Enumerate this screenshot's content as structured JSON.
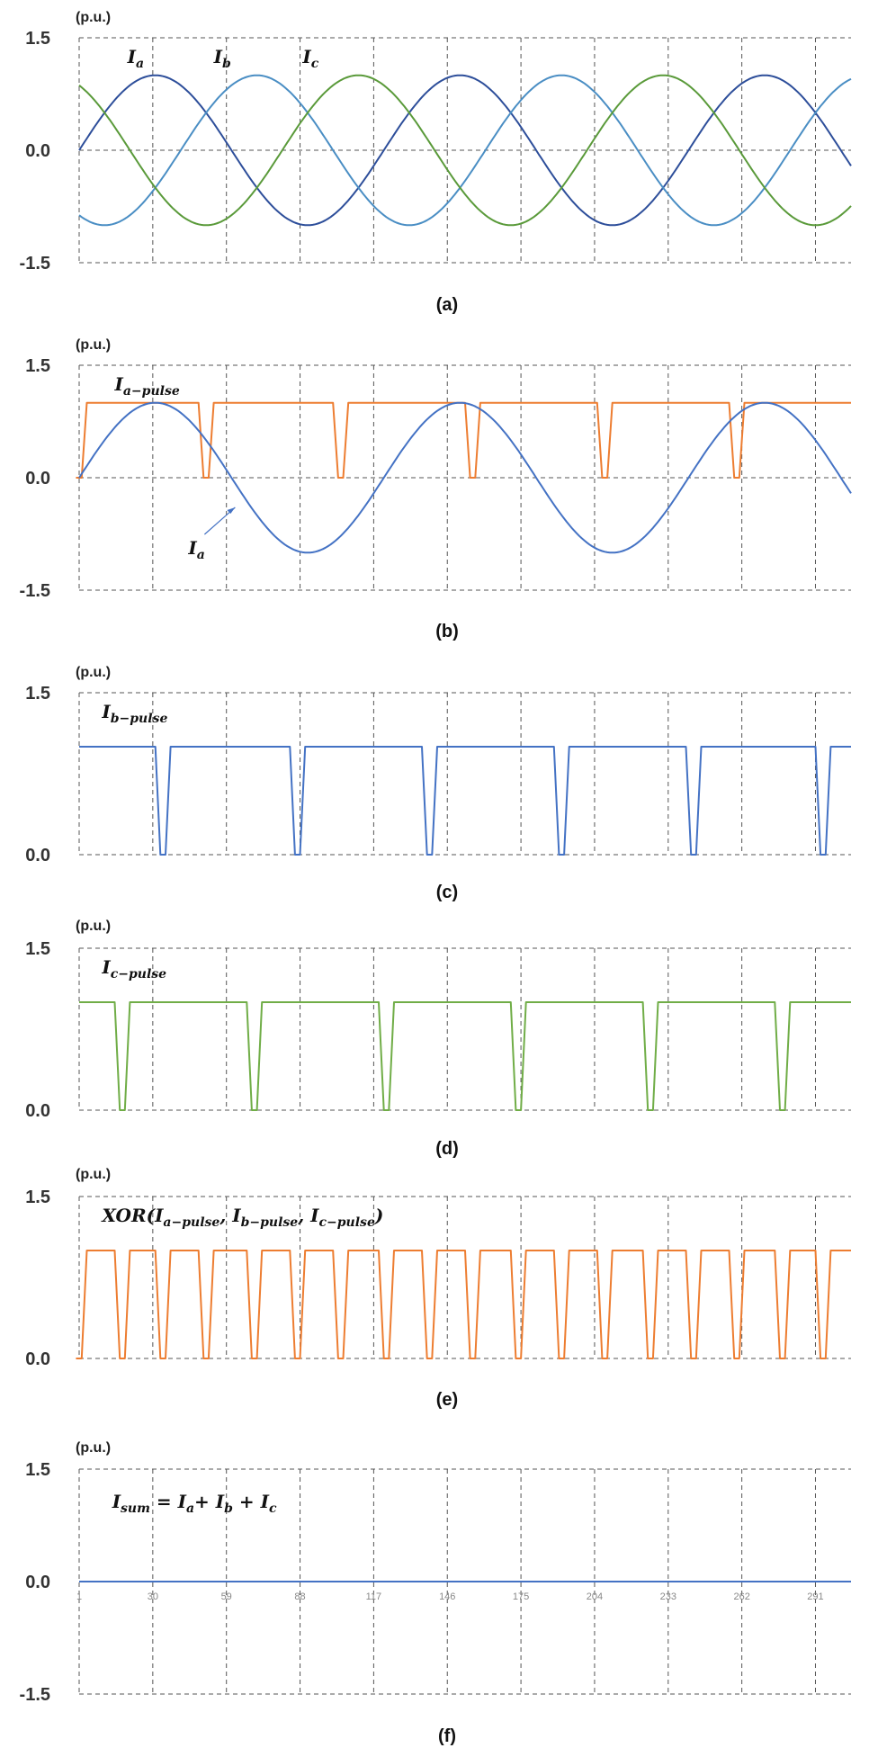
{
  "chart_data": [
    {
      "type": "line",
      "caption": "(a)",
      "unit_label": "(p.u.)",
      "ylim": [
        -1.5,
        1.5
      ],
      "y_ticks": [
        "1.5",
        "0.0",
        "-1.5"
      ],
      "y_tick_values": [
        1.5,
        0.0,
        -1.5
      ],
      "grid": true,
      "x_range": [
        1,
        305
      ],
      "period_samples": 120,
      "series": [
        {
          "name": "Ia",
          "color": "#2d4e9a",
          "amplitude": 1.0,
          "phase_deg": 0
        },
        {
          "name": "Ib",
          "color": "#4a8ec4",
          "amplitude": 1.0,
          "phase_deg": -120
        },
        {
          "name": "Ic",
          "color": "#5a9a3a",
          "amplitude": 1.0,
          "phase_deg": 120
        }
      ],
      "annotations": [
        {
          "base": "I",
          "sub": "a",
          "x": 20
        },
        {
          "base": "I",
          "sub": "b",
          "x": 54
        },
        {
          "base": "I",
          "sub": "c",
          "x": 89
        }
      ]
    },
    {
      "type": "line",
      "caption": "(b)",
      "unit_label": "(p.u.)",
      "ylim": [
        -1.5,
        1.5
      ],
      "y_ticks": [
        "1.5",
        "0.0",
        "-1.5"
      ],
      "y_tick_values": [
        1.5,
        0.0,
        -1.5
      ],
      "grid": true,
      "x_range": [
        1,
        305
      ],
      "period_samples": 120,
      "series": [
        {
          "name": "Ia-pulse",
          "color": "#ed7d31",
          "kind": "pulse",
          "high": 1.0,
          "low": 0.0,
          "drops_at": [
            1,
            51,
            104,
            156,
            208,
            260
          ]
        },
        {
          "name": "Ia",
          "color": "#4472c4",
          "amplitude": 1.0,
          "phase_deg": 0
        }
      ],
      "annotations": [
        {
          "base": "I",
          "sub": "a−pulse",
          "x": 15
        },
        {
          "base": "I",
          "sub": "a",
          "x": 44
        }
      ]
    },
    {
      "type": "line",
      "caption": "(c)",
      "unit_label": "(p.u.)",
      "ylim": [
        0,
        1.5
      ],
      "y_ticks": [
        "1.5",
        "0.0"
      ],
      "y_tick_values": [
        1.5,
        0.0
      ],
      "grid": true,
      "x_range": [
        1,
        305
      ],
      "series": [
        {
          "name": "Ib-pulse",
          "color": "#4472c4",
          "kind": "pulse",
          "high": 1.0,
          "low": 0.0,
          "drops_at": [
            34,
            87,
            139,
            191,
            243,
            294
          ]
        }
      ],
      "annotations": [
        {
          "base": "I",
          "sub": "b−pulse",
          "x": 10
        }
      ]
    },
    {
      "type": "line",
      "caption": "(d)",
      "unit_label": "(p.u.)",
      "ylim": [
        0,
        1.5
      ],
      "y_ticks": [
        "1.5",
        "0.0"
      ],
      "y_tick_values": [
        1.5,
        0.0
      ],
      "grid": true,
      "x_range": [
        1,
        305
      ],
      "series": [
        {
          "name": "Ic-pulse",
          "color": "#70ad47",
          "kind": "pulse",
          "high": 1.0,
          "low": 0.0,
          "drops_at": [
            18,
            70,
            122,
            174,
            226,
            278
          ]
        }
      ],
      "annotations": [
        {
          "base": "I",
          "sub": "c−pulse",
          "x": 10
        }
      ]
    },
    {
      "type": "line",
      "caption": "(e)",
      "unit_label": "(p.u.)",
      "ylim": [
        0,
        1.5
      ],
      "y_ticks": [
        "1.5",
        "0.0"
      ],
      "y_tick_values": [
        1.5,
        0.0
      ],
      "grid": true,
      "x_range": [
        1,
        305
      ],
      "series": [
        {
          "name": "XOR pulse",
          "color": "#ed7d31",
          "kind": "pulse",
          "high": 1.0,
          "low": 0.0,
          "drops_at": [
            1,
            18,
            34,
            51,
            70,
            87,
            104,
            122,
            139,
            156,
            174,
            191,
            208,
            226,
            243,
            260,
            278,
            294
          ]
        }
      ],
      "annotations": [
        {
          "formula": "xor",
          "x": 10
        }
      ]
    },
    {
      "type": "line",
      "caption": "(f)",
      "unit_label": "(p.u.)",
      "ylim": [
        -1.5,
        1.5
      ],
      "y_ticks": [
        "1.5",
        "0.0",
        "-1.5"
      ],
      "y_tick_values": [
        1.5,
        0.0,
        -1.5
      ],
      "grid": true,
      "x_range": [
        1,
        305
      ],
      "x_tick_labels": [
        "1",
        "30",
        "59",
        "88",
        "117",
        "146",
        "175",
        "204",
        "233",
        "262",
        "291"
      ],
      "x_tick_values": [
        1,
        30,
        59,
        88,
        117,
        146,
        175,
        204,
        233,
        262,
        291
      ],
      "series": [
        {
          "name": "Isum",
          "color": "#4472c4",
          "constant": 0.0
        }
      ],
      "annotations": [
        {
          "formula": "sum",
          "x": 14
        }
      ]
    }
  ]
}
